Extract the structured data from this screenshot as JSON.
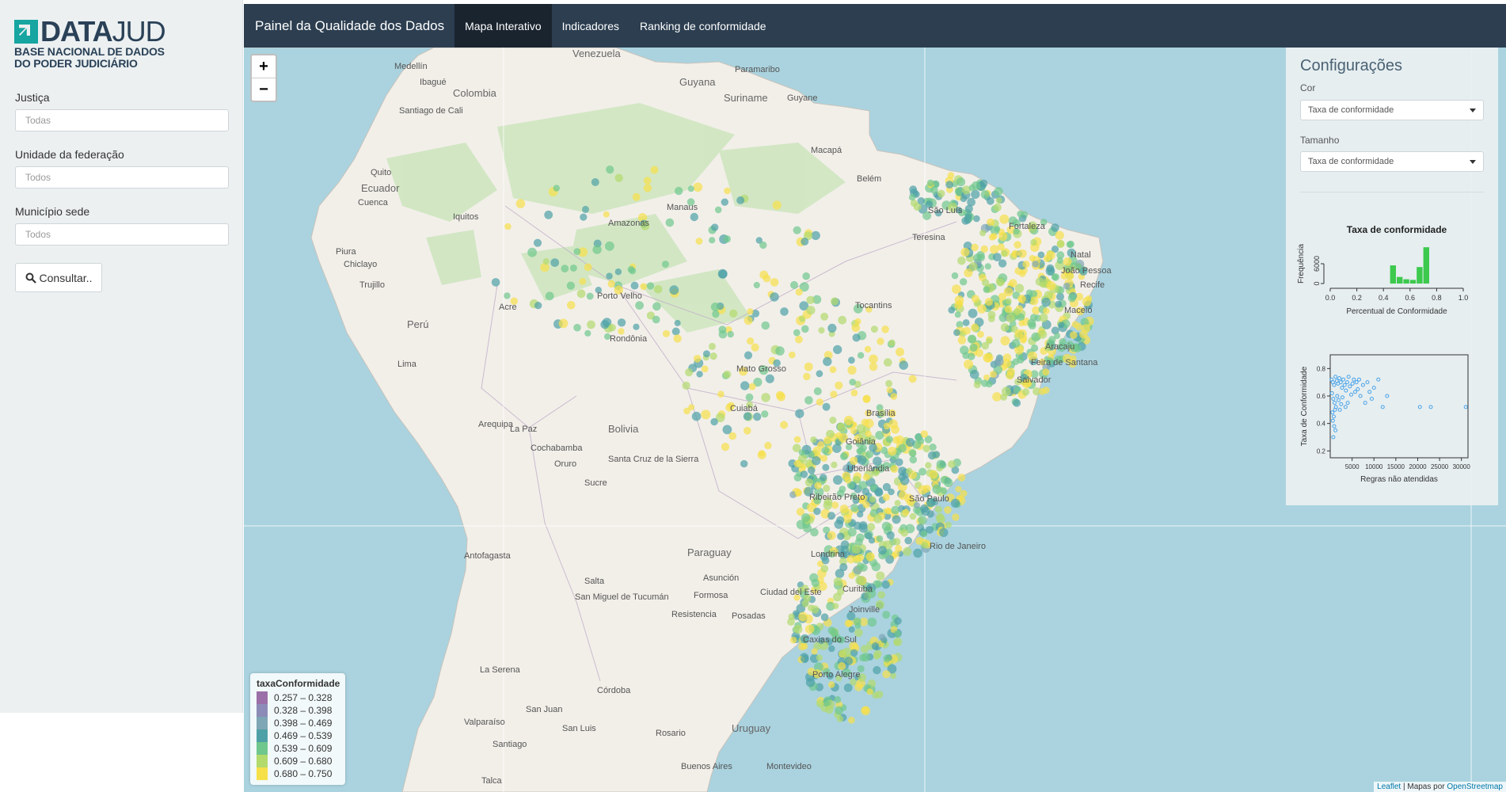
{
  "sidebar": {
    "logo": {
      "word_bold": "DATA",
      "word_light": "JUD",
      "line1": "BASE NACIONAL DE DADOS",
      "line2": "DO PODER JUDICIÁRIO"
    },
    "fields": [
      {
        "label": "Justiça",
        "placeholder": "Todas"
      },
      {
        "label": "Unidade da federação",
        "placeholder": "Todos"
      },
      {
        "label": "Município sede",
        "placeholder": "Todos"
      }
    ],
    "button_label": "Consultar.."
  },
  "navbar": {
    "title": "Painel da Qualidade dos Dados",
    "tabs": [
      "Mapa Interativo",
      "Indicadores",
      "Ranking de conformidade"
    ],
    "active_tab": "Mapa Interativo"
  },
  "map": {
    "zoom_in": "+",
    "zoom_out": "−",
    "country_labels": [
      "Venezuela",
      "Guyana",
      "Suriname",
      "Guyane",
      "Colombia",
      "Ecuador",
      "Perú",
      "Bolivia",
      "Paraguay",
      "Uruguay"
    ],
    "city_labels": [
      "Medellín",
      "Ibagué",
      "Santiago de Cali",
      "Quito",
      "Cuenca",
      "Piura",
      "Chiclayo",
      "Trujillo",
      "Iquitos",
      "Lima",
      "Arequipa",
      "Acre",
      "Porto Velho",
      "Rondônia",
      "Manaus",
      "Amazonas",
      "Macapá",
      "Belém",
      "São Luís",
      "Teresina",
      "Fortaleza",
      "Natal",
      "João Pessoa",
      "Recife",
      "Maceió",
      "Aracaju",
      "Feira de Santana",
      "Salvador",
      "Tocantins",
      "Mato Grosso",
      "Cuiabá",
      "Goiânia",
      "Brasília",
      "Uberlândia",
      "Ribeirão Preto",
      "São Paulo",
      "Rio de Janeiro",
      "Londrina",
      "Curitiba",
      "Joinville",
      "Caxias do Sul",
      "Porto Alegre",
      "Paramaribo",
      "La Paz",
      "Cochabamba",
      "Oruro",
      "Sucre",
      "Santa Cruz de la Sierra",
      "Antofagasta",
      "Salta",
      "San Miguel de Tucumán",
      "Asunción",
      "Formosa",
      "Resistencia",
      "Posadas",
      "Córdoba",
      "Rosario",
      "Buenos Aires",
      "Montevideo",
      "La Serena",
      "San Juan",
      "San Luis",
      "Valparaíso",
      "Santiago",
      "Talca",
      "Ciudad del Este"
    ],
    "legend": {
      "title": "taxaConformidade",
      "items": [
        {
          "label": "0.257 – 0.328",
          "color": "#9b6fa8"
        },
        {
          "label": "0.328 – 0.398",
          "color": "#8d8bb8"
        },
        {
          "label": "0.398 – 0.469",
          "color": "#7fa6b5"
        },
        {
          "label": "0.469 – 0.539",
          "color": "#4da1a6"
        },
        {
          "label": "0.539 – 0.609",
          "color": "#6fc78d"
        },
        {
          "label": "0.609 – 0.680",
          "color": "#b2da6c"
        },
        {
          "label": "0.680 – 0.750",
          "color": "#f6e04a"
        }
      ]
    },
    "attribution": {
      "leaflet": "Leaflet",
      "separator": " | Mapas por ",
      "osm": "OpenStreetmap"
    }
  },
  "config": {
    "title": "Configurações",
    "cor_label": "Cor",
    "cor_value": "Taxa de conformidade",
    "tamanho_label": "Tamanho",
    "tamanho_value": "Taxa de conformidade"
  },
  "chart_data": [
    {
      "type": "bar",
      "title": "Taxa de conformidade",
      "xlabel": "Percentual de Conformidade",
      "ylabel": "Frequência",
      "xlim": [
        0,
        1
      ],
      "xticks": [
        "0.0",
        "0.2",
        "0.4",
        "0.6",
        "0.8",
        "1.0"
      ],
      "yticks": [
        "0",
        "6000"
      ],
      "bin_width": 0.05,
      "bins": [
        0.45,
        0.5,
        0.55,
        0.6,
        0.65,
        0.7
      ],
      "values": [
        5500,
        2000,
        1300,
        1100,
        5000,
        11000
      ],
      "color": "#3cc94d"
    },
    {
      "type": "scatter",
      "xlabel": "Regras não atendidas",
      "ylabel": "Taxa de Conformidade",
      "xlim": [
        0,
        31500
      ],
      "ylim": [
        0.15,
        0.9
      ],
      "xticks": [
        "5000",
        "10000",
        "15000",
        "20000",
        "25000",
        "30000"
      ],
      "yticks": [
        "0.2",
        "0.4",
        "0.6",
        "0.8"
      ],
      "color": "#4aa3e8",
      "points": [
        [
          300,
          0.72
        ],
        [
          600,
          0.7
        ],
        [
          900,
          0.68
        ],
        [
          1200,
          0.74
        ],
        [
          1500,
          0.71
        ],
        [
          1800,
          0.69
        ],
        [
          2100,
          0.73
        ],
        [
          2400,
          0.7
        ],
        [
          2700,
          0.66
        ],
        [
          3000,
          0.72
        ],
        [
          3300,
          0.68
        ],
        [
          3600,
          0.64
        ],
        [
          3900,
          0.7
        ],
        [
          4200,
          0.74
        ],
        [
          4500,
          0.67
        ],
        [
          4800,
          0.61
        ],
        [
          5100,
          0.69
        ],
        [
          5400,
          0.72
        ],
        [
          5700,
          0.63
        ],
        [
          6000,
          0.7
        ],
        [
          6300,
          0.65
        ],
        [
          6600,
          0.72
        ],
        [
          6900,
          0.6
        ],
        [
          7500,
          0.68
        ],
        [
          8000,
          0.55
        ],
        [
          8500,
          0.7
        ],
        [
          9000,
          0.63
        ],
        [
          9500,
          0.58
        ],
        [
          10000,
          0.66
        ],
        [
          11000,
          0.72
        ],
        [
          12000,
          0.52
        ],
        [
          13000,
          0.6
        ],
        [
          400,
          0.62
        ],
        [
          700,
          0.58
        ],
        [
          1000,
          0.55
        ],
        [
          1300,
          0.52
        ],
        [
          1600,
          0.6
        ],
        [
          1900,
          0.57
        ],
        [
          2200,
          0.5
        ],
        [
          2500,
          0.54
        ],
        [
          2800,
          0.59
        ],
        [
          500,
          0.48
        ],
        [
          800,
          0.45
        ],
        [
          1100,
          0.5
        ],
        [
          600,
          0.42
        ],
        [
          900,
          0.38
        ],
        [
          700,
          0.3
        ],
        [
          1200,
          0.35
        ],
        [
          3500,
          0.52
        ],
        [
          4000,
          0.55
        ],
        [
          20500,
          0.52
        ],
        [
          23000,
          0.52
        ],
        [
          31000,
          0.52
        ]
      ]
    }
  ]
}
